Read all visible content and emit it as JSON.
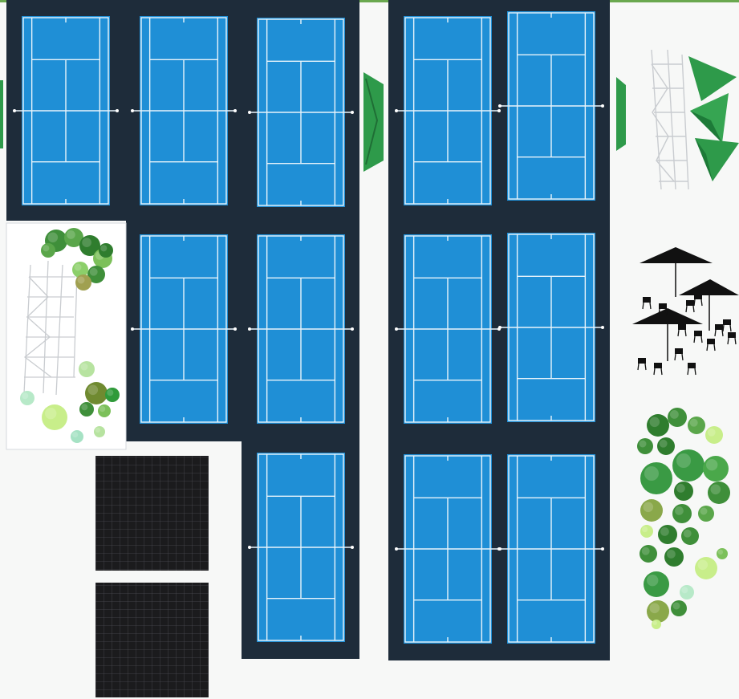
{
  "plan": {
    "court_count": 13,
    "solar_panel_count": 2,
    "shade_sail_count": 3,
    "umbrella_count": 3,
    "planting_area_count": 2
  },
  "colors": {
    "court_surface": "#1f8fd6",
    "court_surround": "#1e2c3a",
    "court_lines": "#e8f4fb",
    "solar_panel": "#1b1b1d",
    "shade_sail": "#2e9a4a",
    "foliage_dark": "#2f7d2e",
    "foliage_light": "#9fd66b",
    "background": "#f7f8f7"
  },
  "icons": {
    "court": "tennis-court-icon",
    "solar": "solar-panel-icon",
    "sail": "shade-sail-icon",
    "umbrella": "patio-umbrella-icon",
    "chair": "chair-icon",
    "shrub": "shrub-icon"
  }
}
